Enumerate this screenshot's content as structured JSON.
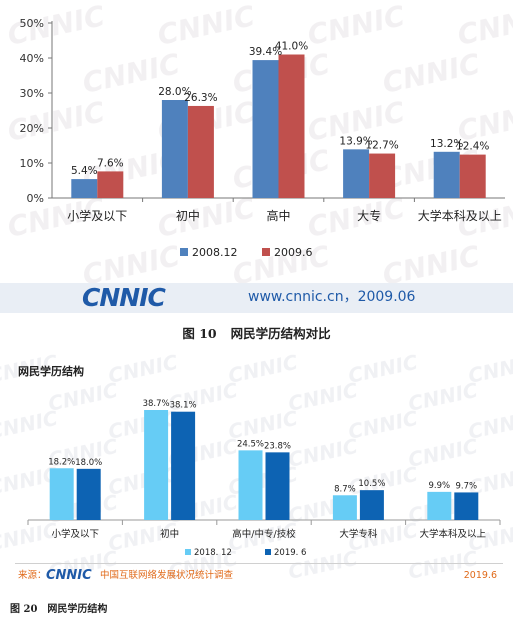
{
  "chart_data": [
    {
      "type": "bar",
      "title": "",
      "categories": [
        "小学及以下",
        "初中",
        "高中",
        "大专",
        "大学本科及以上"
      ],
      "series": [
        {
          "name": "2008.12",
          "values": [
            5.4,
            28.0,
            39.4,
            13.9,
            13.2
          ],
          "labels": [
            "5.4%",
            "28.0%",
            "39.4%",
            "13.9%",
            "13.2%"
          ],
          "color": "#4f81bd"
        },
        {
          "name": "2009.6",
          "values": [
            7.6,
            26.3,
            41.0,
            12.7,
            12.4
          ],
          "labels": [
            "7.6%",
            "26.3%",
            "41.0%",
            "12.7%",
            "12.4%"
          ],
          "color": "#c0504d"
        }
      ],
      "yticks": [
        "0%",
        "10%",
        "20%",
        "30%",
        "40%",
        "50%"
      ],
      "ylim": [
        0,
        50
      ],
      "xlabel": "",
      "ylabel": "",
      "grid": false,
      "legend_position": "bottom"
    },
    {
      "type": "bar",
      "title": "网民学历结构",
      "categories": [
        "小学及以下",
        "初中",
        "高中/中专/技校",
        "大学专科",
        "大学本科及以上"
      ],
      "series": [
        {
          "name": "2018. 12",
          "values": [
            18.2,
            38.7,
            24.5,
            8.7,
            9.9
          ],
          "labels": [
            "18.2%",
            "38.7%",
            "24.5%",
            "8.7%",
            "9.9%"
          ],
          "color": "#66ccf5"
        },
        {
          "name": "2019. 6",
          "values": [
            18.0,
            38.1,
            23.8,
            10.5,
            9.7
          ],
          "labels": [
            "18.0%",
            "38.1%",
            "23.8%",
            "10.5%",
            "9.7%"
          ],
          "color": "#0d63b3"
        }
      ],
      "ylim": [
        0,
        40
      ],
      "xlabel": "",
      "ylabel": "",
      "grid": false,
      "legend_position": "bottom"
    }
  ],
  "top": {
    "logo_text": "CNNIC",
    "url_text": "www.cnnic.cn，2009.06",
    "watermark_text": "CNNIC",
    "caption_num": "图 10",
    "caption_title": "网民学历结构对比"
  },
  "bottom": {
    "source_label": "来源：",
    "logo_text": "CNNIC",
    "org_text": "中国互联网络发展状况统计调查",
    "date_text": "2019.6",
    "watermark_text": "CNNIC",
    "caption_num": "图 20",
    "caption_title": "网民学历结构"
  },
  "colors": {
    "logo_blue": "#1f5aa8",
    "footer_orange": "#e06a1a",
    "footer_band": "#e9eef5"
  }
}
